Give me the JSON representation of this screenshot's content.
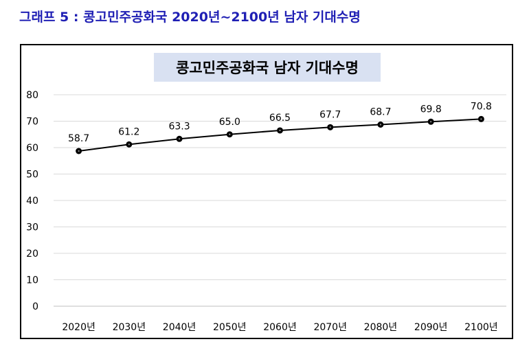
{
  "figure_caption": "그래프 5 : 콩고민주공화국 2020년~2100년 남자 기대수명",
  "chart_data": {
    "type": "line",
    "title": "콩고민주공화국 남자 기대수명",
    "xlabel": "",
    "ylabel": "",
    "categories": [
      "2020년",
      "2030년",
      "2040년",
      "2050년",
      "2060년",
      "2070년",
      "2080년",
      "2090년",
      "2100년"
    ],
    "series": [
      {
        "values": [
          58.7,
          61.2,
          63.3,
          65.0,
          66.5,
          67.7,
          68.7,
          69.8,
          70.8
        ],
        "labels": [
          "58.7",
          "61.2",
          "63.3",
          "65.0",
          "66.5",
          "67.7",
          "68.7",
          "69.8",
          "70.8"
        ]
      }
    ],
    "ylim": [
      0,
      80
    ],
    "yticks": [
      "0",
      "10",
      "20",
      "30",
      "40",
      "50",
      "60",
      "70",
      "80"
    ],
    "grid": true,
    "legend": "none",
    "colors": {
      "caption": "#1f1fb4",
      "title_bg": "#d9e1f2",
      "line": "#000000",
      "grid": "#d9d9d9"
    }
  }
}
